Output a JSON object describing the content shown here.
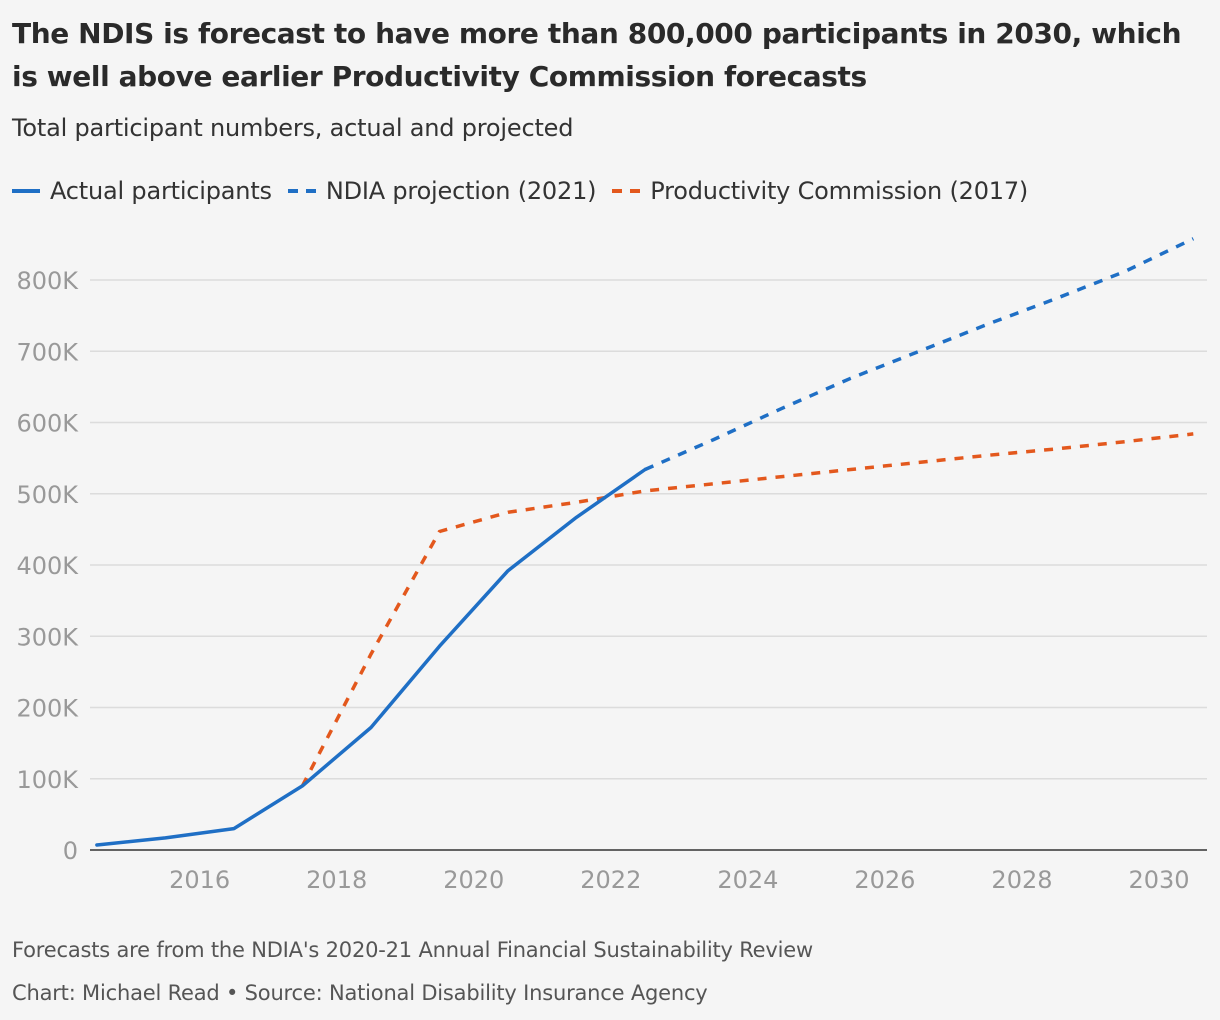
{
  "header": {
    "title": "The NDIS is forecast to have more than 800,000 participants in 2030, which is well above earlier Productivity Commission forecasts",
    "subtitle": "Total participant numbers, actual and projected"
  },
  "footer": {
    "note": "Forecasts are from the NDIA's 2020-21 Annual Financial Sustainability Review",
    "credit": "Chart: Michael Read • Source: National Disability Insurance Agency"
  },
  "chart_data": {
    "type": "line",
    "title": "The NDIS is forecast to have more than 800,000 participants in 2030, which is well above earlier Productivity Commission forecasts",
    "subtitle": "Total participant numbers, actual and projected",
    "xlabel": "",
    "ylabel": "",
    "xlim": [
      2014.4,
      2030.7
    ],
    "ylim": [
      0,
      800000
    ],
    "x_ticks": [
      2016,
      2018,
      2020,
      2022,
      2024,
      2026,
      2028,
      2030
    ],
    "x_tick_labels": [
      "2016",
      "2018",
      "2020",
      "2022",
      "2024",
      "2026",
      "2028",
      "2030"
    ],
    "y_ticks": [
      0,
      100000,
      200000,
      300000,
      400000,
      500000,
      600000,
      700000,
      800000
    ],
    "y_tick_labels": [
      "0",
      "100K",
      "200K",
      "300K",
      "400K",
      "500K",
      "600K",
      "700K",
      "800K"
    ],
    "grid": true,
    "legend": "top-left",
    "series": [
      {
        "name": "Actual participants",
        "color": "#1f6fc5",
        "style": "solid",
        "points": [
          [
            2014.5,
            7000
          ],
          [
            2015.5,
            17000
          ],
          [
            2016.5,
            30000
          ],
          [
            2017.5,
            90000
          ],
          [
            2018.5,
            172000
          ],
          [
            2019.5,
            286000
          ],
          [
            2020.5,
            392000
          ],
          [
            2021.5,
            467000
          ],
          [
            2022.5,
            534000
          ]
        ]
      },
      {
        "name": "NDIA projection (2021)",
        "color": "#1f6fc5",
        "style": "dashed",
        "points": [
          [
            2022.5,
            534000
          ],
          [
            2023.5,
            576000
          ],
          [
            2024.5,
            620000
          ],
          [
            2025.5,
            662000
          ],
          [
            2026.5,
            700000
          ],
          [
            2027.5,
            738000
          ],
          [
            2028.5,
            774000
          ],
          [
            2029.5,
            812000
          ],
          [
            2030.5,
            858000
          ]
        ]
      },
      {
        "name": "Productivity Commission (2017)",
        "color": "#e3581d",
        "style": "dashed",
        "points": [
          [
            2017.5,
            90000
          ],
          [
            2018.5,
            275000
          ],
          [
            2019.5,
            447000
          ],
          [
            2020.5,
            474000
          ],
          [
            2021.5,
            488000
          ],
          [
            2022.5,
            504000
          ],
          [
            2023.5,
            514000
          ],
          [
            2024.5,
            524000
          ],
          [
            2025.5,
            534000
          ],
          [
            2026.5,
            544000
          ],
          [
            2027.5,
            554000
          ],
          [
            2028.5,
            563000
          ],
          [
            2029.5,
            573000
          ],
          [
            2030.5,
            584000
          ]
        ]
      }
    ]
  }
}
